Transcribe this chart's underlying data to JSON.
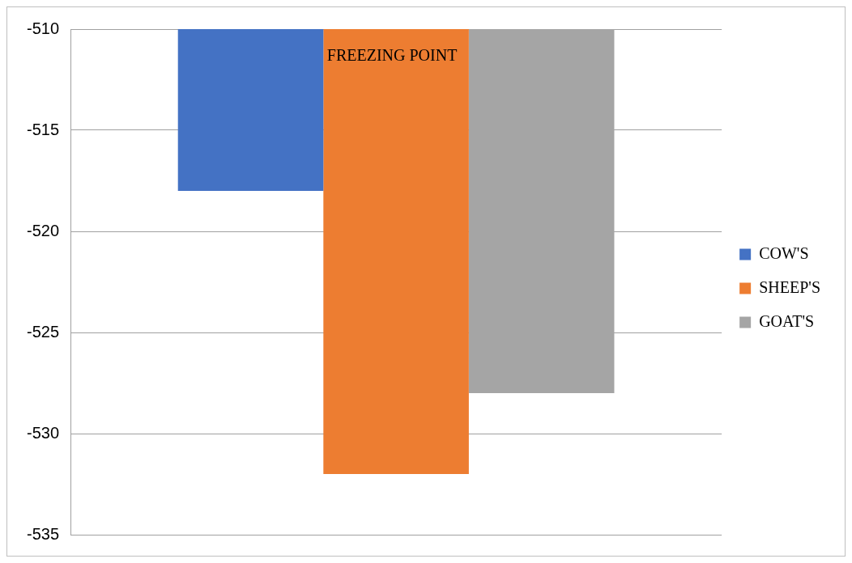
{
  "chart_data": {
    "type": "bar",
    "title": "FREEZING POINT",
    "categories": [
      null
    ],
    "series": [
      {
        "name": "COW'S",
        "color": "#4472c4",
        "values": [
          -518
        ]
      },
      {
        "name": "SHEEP'S",
        "color": "#ed7d31",
        "values": [
          -532
        ]
      },
      {
        "name": "GOAT'S",
        "color": "#a5a5a5",
        "values": [
          -528
        ]
      }
    ],
    "ylim": [
      -535,
      -510
    ],
    "yticks": [
      -535,
      -530,
      -525,
      -520,
      -515,
      -510
    ],
    "grid": "y",
    "legend": "right"
  }
}
